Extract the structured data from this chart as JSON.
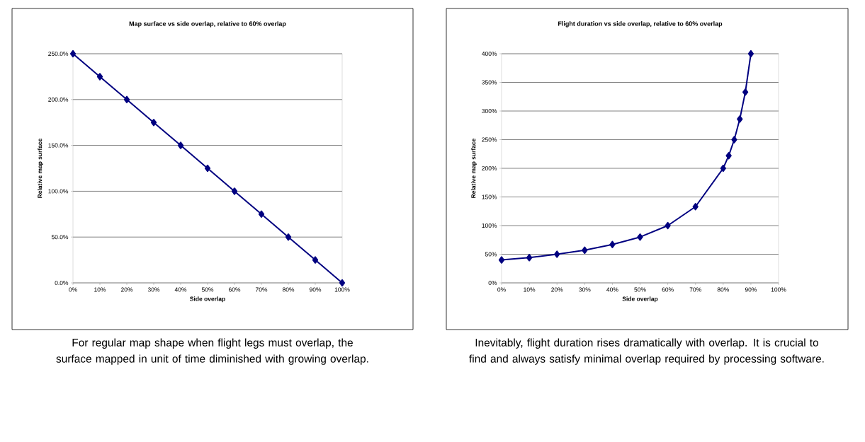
{
  "chart_data": [
    {
      "type": "line",
      "title": "Map surface vs side overlap, relative to 60% overlap",
      "xlabel": "Side overlap",
      "ylabel": "Relative map surface",
      "color": "#000080",
      "marker": "diamond",
      "grid": "y",
      "x": [
        0,
        10,
        20,
        30,
        40,
        50,
        60,
        70,
        80,
        90,
        100
      ],
      "values": [
        250,
        225,
        200,
        175,
        150,
        125,
        100,
        75,
        50,
        25,
        0
      ],
      "xlim": [
        0,
        100
      ],
      "xticks": [
        {
          "value": 0,
          "label": "0%"
        },
        {
          "value": 10,
          "label": "10%"
        },
        {
          "value": 20,
          "label": "20%"
        },
        {
          "value": 30,
          "label": "30%"
        },
        {
          "value": 40,
          "label": "40%"
        },
        {
          "value": 50,
          "label": "50%"
        },
        {
          "value": 60,
          "label": "60%"
        },
        {
          "value": 70,
          "label": "70%"
        },
        {
          "value": 80,
          "label": "80%"
        },
        {
          "value": 90,
          "label": "90%"
        },
        {
          "value": 100,
          "label": "100%"
        }
      ],
      "ylim": [
        0,
        250
      ],
      "yticks": [
        {
          "value": 0,
          "label": "0.0%"
        },
        {
          "value": 50,
          "label": "50.0%"
        },
        {
          "value": 100,
          "label": "100.0%"
        },
        {
          "value": 150,
          "label": "150.0%"
        },
        {
          "value": 200,
          "label": "200.0%"
        },
        {
          "value": 250,
          "label": "250.0%"
        }
      ],
      "annotations": [
        "For regular map shape when flight legs must overlap, the surface mapped in unit of time diminished with growing overlap."
      ]
    },
    {
      "type": "line",
      "title": "Flight duration vs side overlap, relative to 60% overlap",
      "xlabel": "Side overlap",
      "ylabel": "Relative map surface",
      "color": "#000080",
      "marker": "diamond",
      "grid": "y",
      "x": [
        0,
        10,
        20,
        30,
        40,
        50,
        60,
        70,
        80,
        82,
        84,
        86,
        88,
        90
      ],
      "values": [
        40,
        44,
        50,
        57,
        67,
        80,
        100,
        133,
        200,
        222,
        250,
        286,
        333,
        400
      ],
      "xlim": [
        0,
        100
      ],
      "xticks": [
        {
          "value": 0,
          "label": "0%"
        },
        {
          "value": 10,
          "label": "10%"
        },
        {
          "value": 20,
          "label": "20%"
        },
        {
          "value": 30,
          "label": "30%"
        },
        {
          "value": 40,
          "label": "40%"
        },
        {
          "value": 50,
          "label": "50%"
        },
        {
          "value": 60,
          "label": "60%"
        },
        {
          "value": 70,
          "label": "70%"
        },
        {
          "value": 80,
          "label": "80%"
        },
        {
          "value": 90,
          "label": "90%"
        },
        {
          "value": 100,
          "label": "100%"
        }
      ],
      "ylim": [
        0,
        400
      ],
      "yticks": [
        {
          "value": 0,
          "label": "0%"
        },
        {
          "value": 50,
          "label": "50%"
        },
        {
          "value": 100,
          "label": "100%"
        },
        {
          "value": 150,
          "label": "150%"
        },
        {
          "value": 200,
          "label": "200%"
        },
        {
          "value": 250,
          "label": "250%"
        },
        {
          "value": 300,
          "label": "300%"
        },
        {
          "value": 350,
          "label": "350%"
        },
        {
          "value": 400,
          "label": "400%"
        }
      ],
      "annotations": [
        "Inevitably, flight duration rises dramatically with overlap. It is crucial to find and always satisfy minimal overlap required by processing software."
      ]
    }
  ]
}
